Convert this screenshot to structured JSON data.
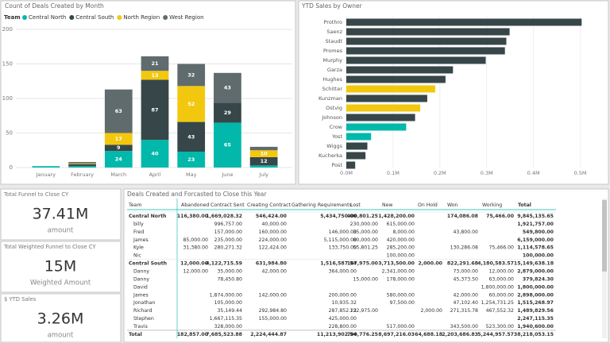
{
  "chart_data": [
    {
      "type": "stacked-bar",
      "title": "Count of Deals Created by Month",
      "legend_title": "Team",
      "categories": [
        "January",
        "February",
        "March",
        "April",
        "May",
        "June",
        "July"
      ],
      "series": [
        {
          "name": "Central North",
          "color": "#01b8aa",
          "values": [
            2,
            2,
            24,
            40,
            23,
            65,
            3
          ]
        },
        {
          "name": "Central South",
          "color": "#374649",
          "values": [
            0,
            3,
            9,
            87,
            43,
            29,
            12
          ]
        },
        {
          "name": "North Region",
          "color": "#f2c80f",
          "values": [
            0,
            1,
            17,
            13,
            52,
            0,
            10
          ]
        },
        {
          "name": "West Region",
          "color": "#5f6b6d",
          "values": [
            0,
            2,
            63,
            21,
            32,
            43,
            5
          ]
        }
      ],
      "ylim": [
        0,
        200
      ],
      "yticks": [
        0,
        50,
        100,
        150,
        200
      ],
      "grid": true
    },
    {
      "type": "hbar",
      "title": "YTD Sales by Owner",
      "categories": [
        "Prothro",
        "Saenz",
        "Staudt",
        "Promes",
        "Murphy",
        "Garza",
        "Hughes",
        "Schitter",
        "Kunzman",
        "Ostvig",
        "Johnson",
        "Crow",
        "Yost",
        "Wiggs",
        "Kucherka",
        "Post"
      ],
      "values": [
        503000,
        349000,
        342000,
        339000,
        298000,
        228000,
        212000,
        190000,
        173000,
        158000,
        147000,
        128000,
        53000,
        45000,
        41000,
        19000
      ],
      "colors": [
        "#374649",
        "#374649",
        "#374649",
        "#374649",
        "#374649",
        "#374649",
        "#374649",
        "#f2c80f",
        "#374649",
        "#f2c80f",
        "#374649",
        "#01b8aa",
        "#01b8aa",
        "#374649",
        "#374649",
        "#374649"
      ],
      "xlim": [
        0,
        550000
      ],
      "xticks": [
        {
          "value": 0,
          "label": "0.0M"
        },
        {
          "value": 100000,
          "label": "0.1M"
        },
        {
          "value": 200000,
          "label": "0.2M"
        },
        {
          "value": 300000,
          "label": "0.3M"
        },
        {
          "value": 400000,
          "label": "0.4M"
        },
        {
          "value": 500000,
          "label": "0.5M"
        }
      ]
    }
  ],
  "cards": [
    {
      "label": "Total Funnel to Close CY",
      "value": "37.41M",
      "caption": "amount"
    },
    {
      "label": "Total Weighted Funnel to Close CY",
      "value": "15M",
      "caption": "Weighted Amount"
    },
    {
      "label": "$ YTD Sales",
      "value": "3.26M",
      "caption": "amount"
    }
  ],
  "table": {
    "title": "Deals Created and Forcasted to Close this Year",
    "columns": [
      "Team",
      "Abandoned",
      "Contract Sent",
      "Creating Contract",
      "Gathering Requirements",
      "Lost",
      "New",
      "On Hold",
      "Won",
      "Working",
      "Total"
    ],
    "rows": [
      [
        "Central North",
        "116,380.00",
        "1,669,028.32",
        "546,424.00",
        "5,434,750.00",
        "400,801.25",
        "1,428,200.00",
        null,
        "174,086.08",
        "75,466.00",
        "9,845,135.65"
      ],
      [
        "billy",
        null,
        "996,757.00",
        "40,000.00",
        null,
        "230,000.00",
        "615,000.00",
        null,
        null,
        null,
        "1,921,757.00"
      ],
      [
        "Fred",
        null,
        "157,000.00",
        "160,000.00",
        "146,000.00",
        "35,000.00",
        "8,000.00",
        null,
        "43,800.00",
        null,
        "549,800.00"
      ],
      [
        "James",
        "85,000.00",
        "235,000.00",
        "224,000.00",
        "5,115,000.00",
        "80,000.00",
        "420,000.00",
        null,
        null,
        null,
        "6,159,000.00"
      ],
      [
        "Kyle",
        "31,380.00",
        "280,271.32",
        "122,424.00",
        "133,750.00",
        "55,801.25",
        "285,200.00",
        null,
        "130,286.08",
        "75,466.00",
        "1,114,578.65"
      ],
      [
        "Nic",
        null,
        null,
        null,
        null,
        null,
        "100,000.00",
        null,
        null,
        null,
        "100,000.00"
      ],
      [
        "Central South",
        "12,000.00",
        "4,122,715.59",
        "631,984.80",
        "1,516,587.54",
        "147,975.00",
        "3,713,500.00",
        "2,000.00",
        "822,291.68",
        "4,180,583.57",
        "15,149,638.18"
      ],
      [
        "Danny",
        "12,000.00",
        "35,000.00",
        "42,000.00",
        "364,000.00",
        null,
        "2,341,000.00",
        null,
        "73,000.00",
        "12,000.00",
        "2,879,000.00"
      ],
      [
        "Danny",
        null,
        "78,450.80",
        null,
        null,
        "15,000.00",
        "178,000.00",
        null,
        "45,373.50",
        "63,000.00",
        "379,824.30"
      ],
      [
        "David",
        null,
        null,
        null,
        null,
        null,
        null,
        null,
        null,
        "1,800,000.00",
        "1,800,000.00"
      ],
      [
        "James",
        null,
        "1,874,000.00",
        "142,000.00",
        "200,000.00",
        null,
        "580,000.00",
        null,
        "42,000.00",
        "60,000.00",
        "2,898,000.00"
      ],
      [
        "Jonathan",
        null,
        "105,000.00",
        null,
        "10,935.32",
        null,
        "97,500.00",
        null,
        "47,102.40",
        "1,254,731.25",
        "1,515,268.97"
      ],
      [
        "Richard",
        null,
        "35,149.44",
        "292,984.80",
        "287,852.22",
        "132,975.00",
        null,
        "2,000.00",
        "271,315.78",
        "467,552.32",
        "1,489,829.56"
      ],
      [
        "Stephen",
        null,
        "1,667,115.35",
        "155,000.00",
        "425,000.00",
        null,
        null,
        null,
        null,
        null,
        "2,247,115.35"
      ],
      [
        "Travis",
        null,
        "328,000.00",
        null,
        "228,800.00",
        null,
        "517,000.00",
        null,
        "343,500.00",
        "523,300.00",
        "1,940,600.00"
      ],
      [
        "Total",
        "182,857.00",
        "7,685,523.88",
        "2,224,444.87",
        "11,213,902.54",
        "700,776.25",
        "8,697,216.03",
        "64,688.18",
        "2,203,686.83",
        "5,244,957.57",
        "38,218,053.15"
      ]
    ]
  }
}
